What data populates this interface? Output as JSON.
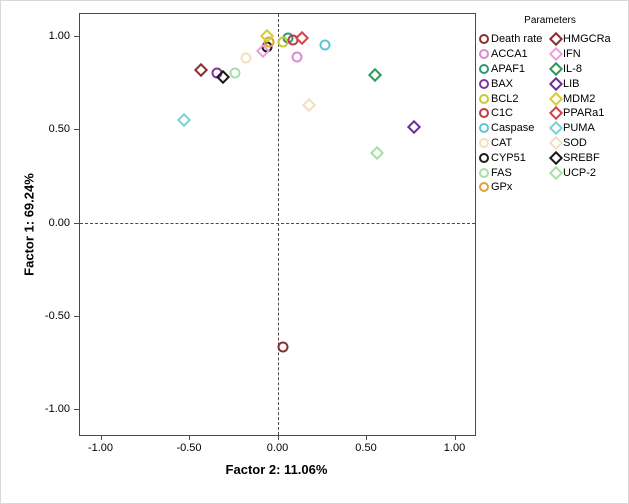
{
  "chart_data": {
    "type": "scatter",
    "title": "",
    "xlabel": "Factor 2: 11.06%",
    "ylabel": "Factor 1: 69.24%",
    "xlim": [
      -1.11,
      1.12
    ],
    "ylim": [
      -1.14,
      1.12
    ],
    "grid": false,
    "reference_lines": {
      "vertical_at_x": 0.0,
      "horizontal_at_y": 0.0,
      "style": "dashed"
    },
    "x_ticks": [
      {
        "value": -1.0,
        "label": "-1.00"
      },
      {
        "value": -0.5,
        "label": "-0.50"
      },
      {
        "value": 0.0,
        "label": "0.00"
      },
      {
        "value": 0.5,
        "label": "0.50"
      },
      {
        "value": 1.0,
        "label": "1.00"
      }
    ],
    "y_ticks": [
      {
        "value": 1.0,
        "label": "1.00"
      },
      {
        "value": 0.5,
        "label": "0.50"
      },
      {
        "value": 0.0,
        "label": "0.00"
      },
      {
        "value": -0.5,
        "label": "-0.50"
      },
      {
        "value": -1.0,
        "label": "-1.00"
      }
    ],
    "legend_title": "Parameters",
    "legend_position": "right",
    "points": [
      {
        "label": "Death rate",
        "x": 0.03,
        "y": -0.67,
        "marker": "circle",
        "color": "#8B2E2E"
      },
      {
        "label": "ACCA1",
        "x": 0.11,
        "y": 0.89,
        "marker": "circle",
        "color": "#DA8BD0"
      },
      {
        "label": "APAF1",
        "x": 0.06,
        "y": 0.99,
        "marker": "circle",
        "color": "#2E9970"
      },
      {
        "label": "BAX",
        "x": -0.34,
        "y": 0.8,
        "marker": "circle",
        "color": "#7A3B99"
      },
      {
        "label": "BCL2",
        "x": 0.03,
        "y": 0.97,
        "marker": "circle",
        "color": "#C2CC33"
      },
      {
        "label": "C1C",
        "x": 0.09,
        "y": 0.98,
        "marker": "circle",
        "color": "#BF3A4D"
      },
      {
        "label": "Caspase",
        "x": 0.27,
        "y": 0.95,
        "marker": "circle",
        "color": "#62C4D8"
      },
      {
        "label": "CAT",
        "x": -0.18,
        "y": 0.88,
        "marker": "circle",
        "color": "#F2DFC0"
      },
      {
        "label": "CYP51",
        "x": -0.06,
        "y": 0.94,
        "marker": "circle",
        "color": "#1A1A1A"
      },
      {
        "label": "FAS",
        "x": -0.24,
        "y": 0.8,
        "marker": "circle",
        "color": "#A8DFA8"
      },
      {
        "label": "GPx",
        "x": -0.05,
        "y": 0.97,
        "marker": "circle",
        "color": "#E0A23E"
      },
      {
        "label": "HMGCRa",
        "x": -0.43,
        "y": 0.82,
        "marker": "diamond",
        "color": "#8B2E2E"
      },
      {
        "label": "IFN",
        "x": -0.08,
        "y": 0.92,
        "marker": "diamond",
        "color": "#EC9FDE"
      },
      {
        "label": "IL-8",
        "x": 0.55,
        "y": 0.79,
        "marker": "diamond",
        "color": "#2E9958"
      },
      {
        "label": "LIB",
        "x": 0.77,
        "y": 0.51,
        "marker": "diamond",
        "color": "#6E2E99"
      },
      {
        "label": "MDM2",
        "x": -0.06,
        "y": 1.0,
        "marker": "diamond",
        "color": "#D6CC33"
      },
      {
        "label": "PPARa1",
        "x": 0.14,
        "y": 0.99,
        "marker": "diamond",
        "color": "#D8414B"
      },
      {
        "label": "PUMA",
        "x": -0.53,
        "y": 0.55,
        "marker": "diamond",
        "color": "#7AD4CE"
      },
      {
        "label": "SOD",
        "x": 0.18,
        "y": 0.63,
        "marker": "diamond",
        "color": "#F2DFC0"
      },
      {
        "label": "SREBF",
        "x": -0.31,
        "y": 0.78,
        "marker": "diamond",
        "color": "#1A1A1A"
      },
      {
        "label": "UCP-2",
        "x": 0.56,
        "y": 0.37,
        "marker": "diamond",
        "color": "#A8DFA8"
      }
    ]
  },
  "axes": {
    "x_title": "Factor 2: 11.06%",
    "y_title": "Factor 1: 69.24%"
  },
  "legend": {
    "title": "Parameters"
  }
}
